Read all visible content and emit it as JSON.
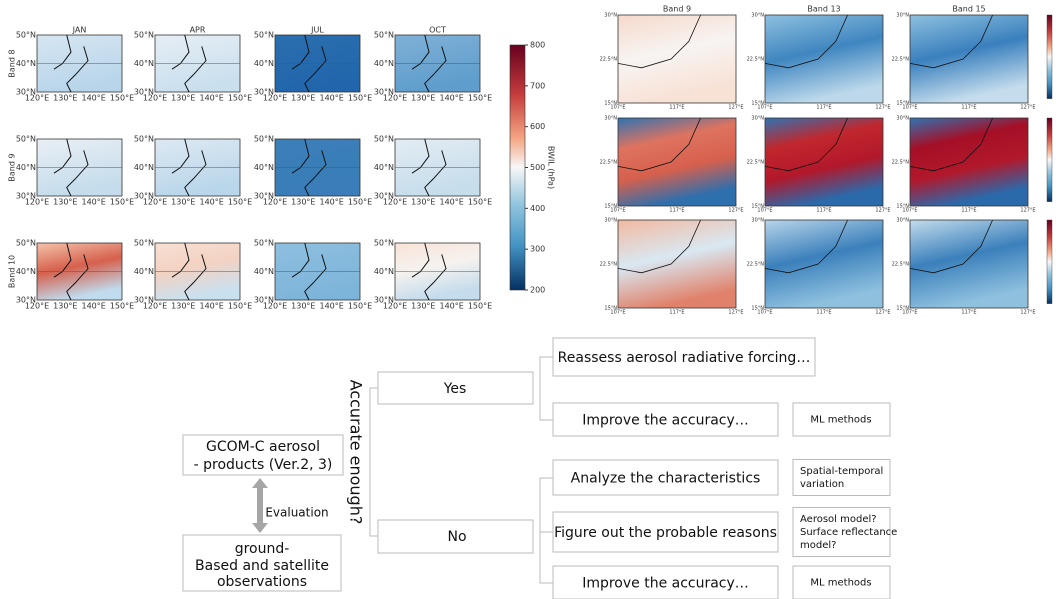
{
  "left_maps": {
    "columns": [
      "JAN",
      "APR",
      "JUL",
      "OCT"
    ],
    "rows": [
      "Band 8",
      "Band 9",
      "Band 10"
    ],
    "lat_ticks": [
      "50°N",
      "40°N",
      "30°N"
    ],
    "lon_ticks": [
      "120°E",
      "130°E",
      "140°E",
      "150°E"
    ],
    "colorbar": {
      "label": "BWIL (hPa)",
      "ticks": [
        800,
        700,
        600,
        500,
        400,
        300,
        200
      ]
    }
  },
  "right_maps": {
    "columns": [
      "Band 9",
      "Band 13",
      "Band 15"
    ],
    "lat_ticks": [
      "30°N",
      "22.5°N",
      "15°N"
    ],
    "lon_ticks": [
      "107°E",
      "117°E",
      "127°E"
    ]
  },
  "flowchart": {
    "source": [
      "GCOM-C aerosol",
      "- products (Ver.2, 3)"
    ],
    "evaluation": "Evaluation",
    "reference": [
      "ground-",
      "Based and satellite",
      "observations"
    ],
    "question": "Accurate enough?",
    "yes": "Yes",
    "no": "No",
    "yes_actions": [
      {
        "text": "Reassess aerosol radiative forcing…"
      },
      {
        "text": "Improve the accuracy…",
        "note": [
          "ML methods"
        ]
      }
    ],
    "no_actions": [
      {
        "text": "Analyze the characteristics",
        "note": [
          "Spatial-temporal",
          "variation"
        ]
      },
      {
        "text": "Figure out the probable reasons",
        "note": [
          "Aerosol model?",
          "Surface reflectance",
          "model?"
        ]
      },
      {
        "text": "Improve the accuracy…",
        "note": [
          "ML methods"
        ]
      }
    ]
  }
}
